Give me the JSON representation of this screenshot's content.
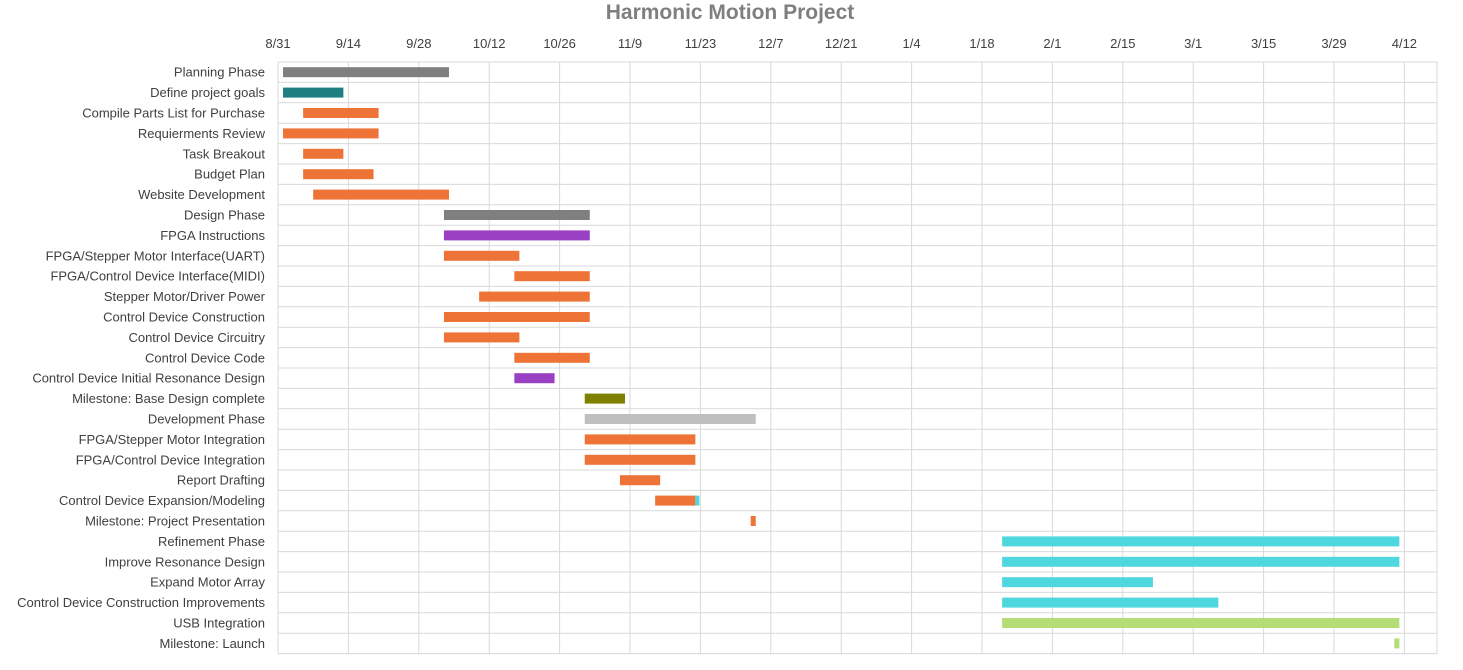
{
  "chart_data": {
    "type": "gantt",
    "title": "Harmonic Motion Project",
    "x_axis": {
      "ticks": [
        "8/31",
        "9/14",
        "9/28",
        "10/12",
        "10/26",
        "11/9",
        "11/23",
        "12/7",
        "12/21",
        "1/4",
        "1/18",
        "2/1",
        "2/15",
        "3/1",
        "3/15",
        "3/29",
        "4/12"
      ],
      "range": [
        "2017-08-31",
        "2018-04-12"
      ]
    },
    "grid": true,
    "legend": "none",
    "colors": {
      "phase": "#7f7f7f",
      "phase_light": "#bfbfbf",
      "teal": "#1f7f80",
      "orange": "#ed7336",
      "purple": "#9940c3",
      "olive": "#7f7f00",
      "cyan": "#4fd7df",
      "lime": "#b5dd76"
    },
    "tasks": [
      {
        "name": "Planning Phase",
        "start": "2017-09-01",
        "end": "2017-10-04",
        "color": "phase"
      },
      {
        "name": "Define project goals",
        "start": "2017-09-01",
        "end": "2017-09-13",
        "color": "teal"
      },
      {
        "name": "Compile Parts List for Purchase",
        "start": "2017-09-05",
        "end": "2017-09-20",
        "color": "orange"
      },
      {
        "name": "Requierments Review",
        "start": "2017-09-01",
        "end": "2017-09-20",
        "color": "orange"
      },
      {
        "name": "Task Breakout",
        "start": "2017-09-05",
        "end": "2017-09-13",
        "color": "orange"
      },
      {
        "name": "Budget Plan",
        "start": "2017-09-05",
        "end": "2017-09-19",
        "color": "orange"
      },
      {
        "name": "Website Development",
        "start": "2017-09-07",
        "end": "2017-10-04",
        "color": "orange"
      },
      {
        "name": "Design Phase",
        "start": "2017-10-03",
        "end": "2017-11-01",
        "color": "phase"
      },
      {
        "name": "FPGA Instructions",
        "start": "2017-10-03",
        "end": "2017-11-01",
        "color": "purple"
      },
      {
        "name": "FPGA/Stepper Motor Interface(UART)",
        "start": "2017-10-03",
        "end": "2017-10-18",
        "color": "orange"
      },
      {
        "name": "FPGA/Control Device Interface(MIDI)",
        "start": "2017-10-17",
        "end": "2017-11-01",
        "color": "orange"
      },
      {
        "name": "Stepper Motor/Driver Power",
        "start": "2017-10-10",
        "end": "2017-11-01",
        "color": "orange"
      },
      {
        "name": "Control Device Construction",
        "start": "2017-10-03",
        "end": "2017-11-01",
        "color": "orange"
      },
      {
        "name": "Control Device Circuitry",
        "start": "2017-10-03",
        "end": "2017-10-18",
        "color": "orange"
      },
      {
        "name": "Control Device Code",
        "start": "2017-10-17",
        "end": "2017-11-01",
        "color": "orange"
      },
      {
        "name": "Control Device Initial Resonance Design",
        "start": "2017-10-17",
        "end": "2017-10-25",
        "color": "purple"
      },
      {
        "name": "Milestone: Base Design complete",
        "start": "2017-10-31",
        "end": "2017-11-08",
        "color": "olive"
      },
      {
        "name": "Development Phase",
        "start": "2017-10-31",
        "end": "2017-12-04",
        "color": "phase_light"
      },
      {
        "name": "FPGA/Stepper Motor Integration",
        "start": "2017-10-31",
        "end": "2017-11-22",
        "color": "orange"
      },
      {
        "name": "FPGA/Control Device Integration",
        "start": "2017-10-31",
        "end": "2017-11-22",
        "color": "orange"
      },
      {
        "name": "Report Drafting",
        "start": "2017-11-07",
        "end": "2017-11-15",
        "color": "orange"
      },
      {
        "name": "Control Device Expansion/Modeling",
        "start": "2017-11-14",
        "end": "2017-11-22",
        "color": "orange",
        "tail_color": "cyan"
      },
      {
        "name": "Milestone: Project Presentation",
        "start": "2017-12-03",
        "end": "2017-12-04",
        "color": "orange"
      },
      {
        "name": "Refinement Phase",
        "start": "2018-01-22",
        "end": "2018-04-11",
        "color": "cyan"
      },
      {
        "name": "Improve Resonance Design",
        "start": "2018-01-22",
        "end": "2018-04-11",
        "color": "cyan"
      },
      {
        "name": "Expand Motor Array",
        "start": "2018-01-22",
        "end": "2018-02-21",
        "color": "cyan"
      },
      {
        "name": "Control Device Construction Improvements",
        "start": "2018-01-22",
        "end": "2018-03-06",
        "color": "cyan"
      },
      {
        "name": "USB Integration",
        "start": "2018-01-22",
        "end": "2018-04-11",
        "color": "lime"
      },
      {
        "name": "Milestone: Launch",
        "start": "2018-04-10",
        "end": "2018-04-11",
        "color": "lime"
      }
    ]
  }
}
